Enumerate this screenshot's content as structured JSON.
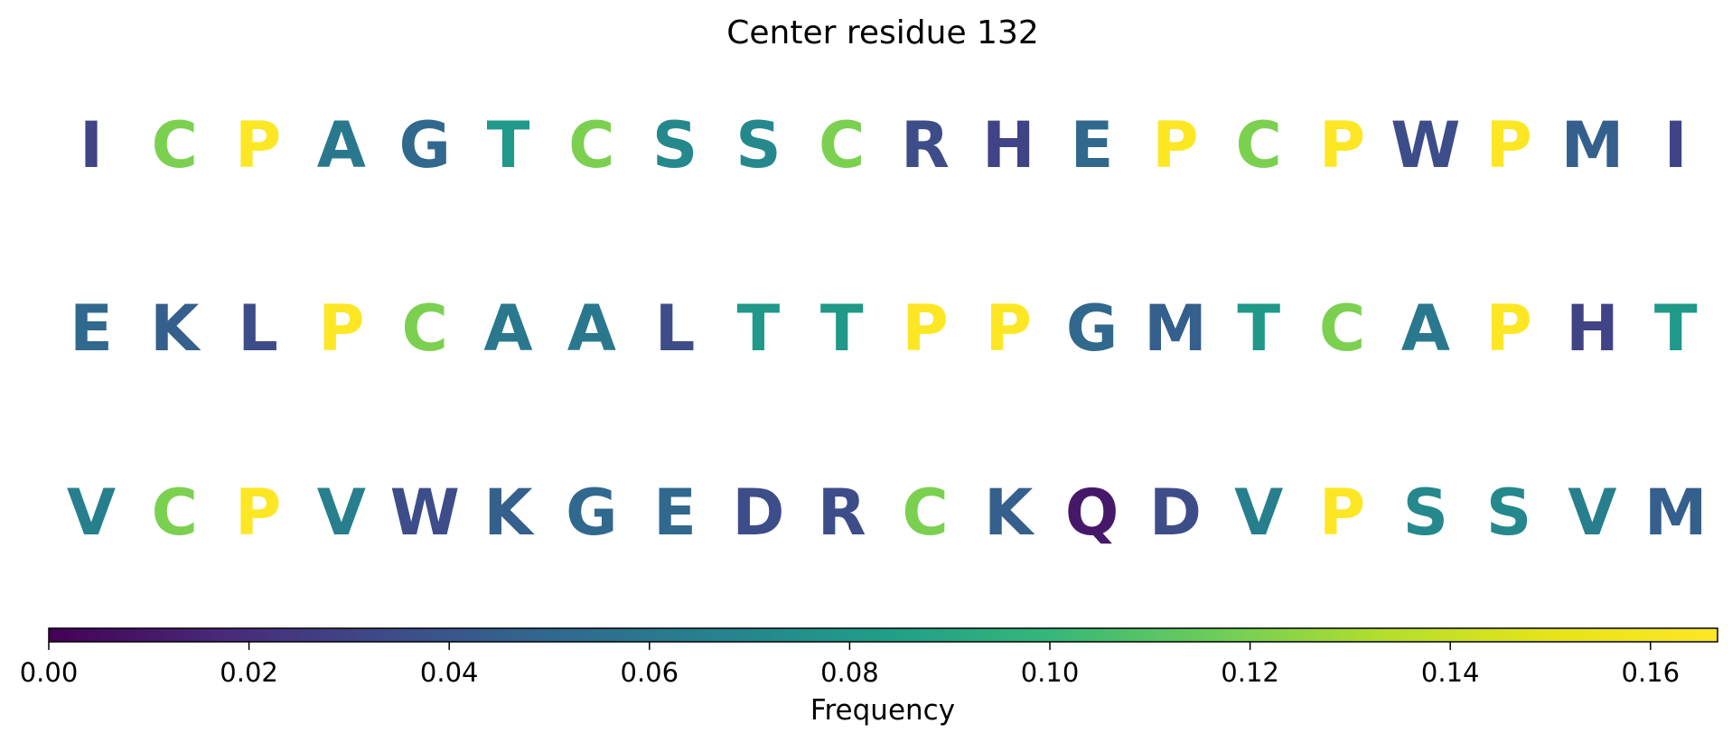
{
  "chart_data": {
    "type": "heatmap",
    "title": "Center residue 132",
    "rows": [
      {
        "residues": [
          "I",
          "C",
          "P",
          "A",
          "G",
          "T",
          "C",
          "S",
          "S",
          "C",
          "R",
          "H",
          "E",
          "P",
          "C",
          "P",
          "W",
          "P",
          "M",
          "I"
        ],
        "values": [
          0.03,
          0.12,
          0.167,
          0.06,
          0.05,
          0.08,
          0.12,
          0.07,
          0.07,
          0.12,
          0.035,
          0.03,
          0.05,
          0.167,
          0.12,
          0.167,
          0.035,
          0.167,
          0.045,
          0.03
        ]
      },
      {
        "residues": [
          "E",
          "K",
          "L",
          "P",
          "C",
          "A",
          "A",
          "L",
          "T",
          "T",
          "P",
          "P",
          "G",
          "M",
          "T",
          "C",
          "A",
          "P",
          "H",
          "T"
        ],
        "values": [
          0.05,
          0.045,
          0.035,
          0.167,
          0.12,
          0.06,
          0.06,
          0.035,
          0.08,
          0.08,
          0.167,
          0.167,
          0.05,
          0.045,
          0.08,
          0.12,
          0.06,
          0.167,
          0.03,
          0.08
        ]
      },
      {
        "residues": [
          "V",
          "C",
          "P",
          "V",
          "W",
          "K",
          "G",
          "E",
          "D",
          "R",
          "C",
          "K",
          "Q",
          "D",
          "V",
          "P",
          "S",
          "S",
          "V",
          "M"
        ],
        "values": [
          0.065,
          0.12,
          0.167,
          0.065,
          0.035,
          0.045,
          0.05,
          0.05,
          0.035,
          0.035,
          0.12,
          0.045,
          0.01,
          0.035,
          0.065,
          0.167,
          0.07,
          0.07,
          0.065,
          0.045
        ]
      }
    ],
    "colorbar": {
      "label": "Frequency",
      "colormap": "viridis",
      "range": [
        0,
        0.1667
      ],
      "ticks": [
        "0.00",
        "0.02",
        "0.04",
        "0.06",
        "0.08",
        "0.10",
        "0.12",
        "0.14",
        "0.16"
      ],
      "orientation": "horizontal",
      "placement": "bottom"
    }
  }
}
